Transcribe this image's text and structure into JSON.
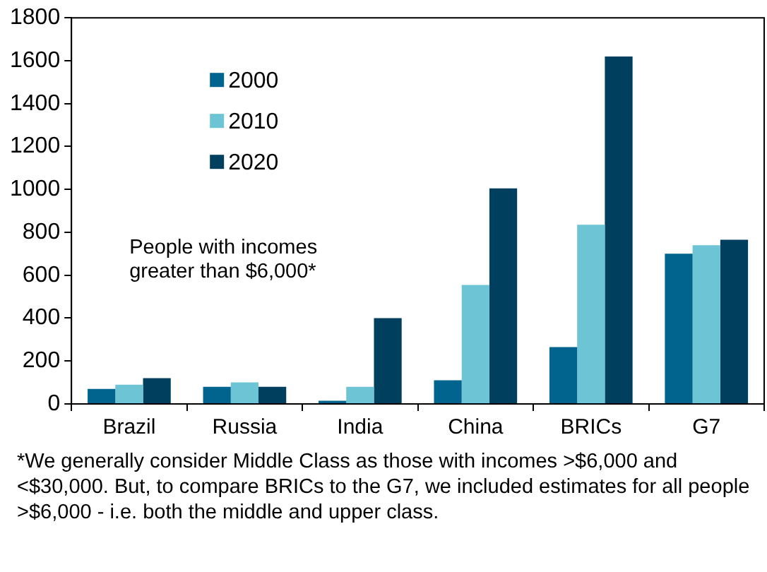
{
  "chart_data": {
    "type": "bar",
    "categories": [
      "Brazil",
      "Russia",
      "India",
      "China",
      "BRICs",
      "G7"
    ],
    "series": [
      {
        "name": "2000",
        "color": "#00648f",
        "values": [
          70,
          80,
          15,
          110,
          265,
          700
        ]
      },
      {
        "name": "2010",
        "color": "#6cc4d4",
        "values": [
          90,
          100,
          80,
          555,
          835,
          740
        ]
      },
      {
        "name": "2020",
        "color": "#003f5e",
        "values": [
          120,
          80,
          400,
          1005,
          1620,
          765
        ]
      }
    ],
    "ylim": [
      0,
      1800
    ],
    "yticks": [
      0,
      200,
      400,
      600,
      800,
      1000,
      1200,
      1400,
      1600,
      1800
    ],
    "grid": false,
    "legend": "top left",
    "annotations": [
      "People with incomes greater than $6,000*",
      "*We generally consider Middle Class as those with incomes >$6,000 and <$30,000. But, to compare BRICs to the G7, we included estimates for all people >$6,000 - i.e. both the middle and upper class."
    ]
  }
}
